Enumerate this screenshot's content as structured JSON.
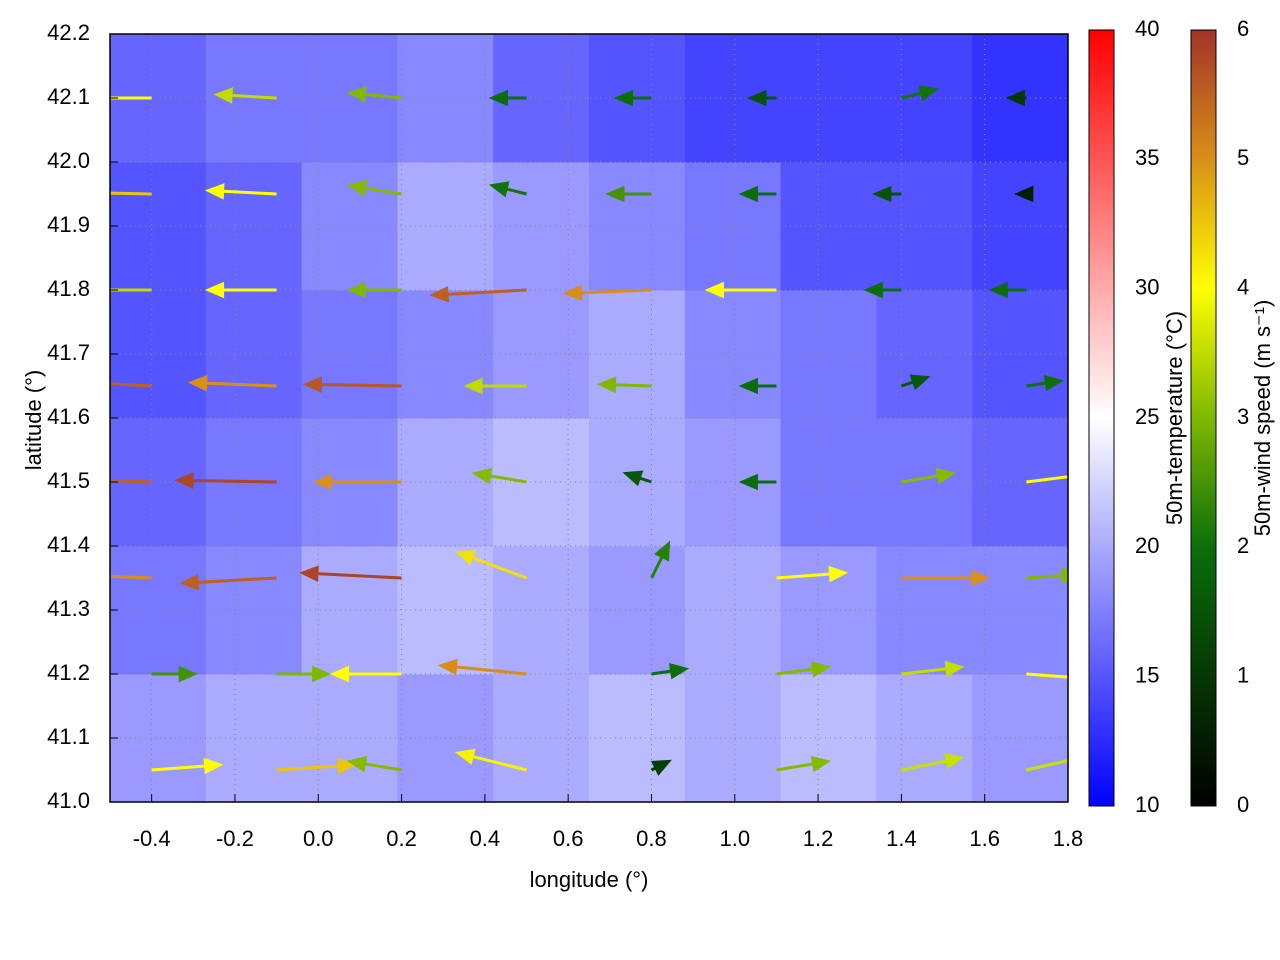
{
  "chart_data": {
    "type": "vector_field",
    "xlabel": "longitude (°)",
    "ylabel": "latitude (°)",
    "xlim": [
      -0.5,
      1.8
    ],
    "ylim": [
      41.0,
      42.2
    ],
    "xticks": [
      -0.4,
      -0.2,
      {
        "value": 0,
        "label": "0.0"
      },
      0.2,
      0.4,
      0.6,
      0.8,
      {
        "value": 1,
        "label": "1.0"
      },
      1.2,
      1.4,
      1.6,
      1.8
    ],
    "yticks": [
      {
        "value": 41,
        "label": "41.0"
      },
      41.1,
      41.2,
      41.3,
      41.4,
      41.5,
      41.6,
      41.7,
      41.8,
      41.9,
      {
        "value": 42,
        "label": "42.0"
      },
      42.1,
      42.2
    ],
    "grid": true,
    "temperature": {
      "lon": [
        -0.385,
        -0.155,
        0.075,
        0.305,
        0.535,
        0.765,
        0.995,
        1.225,
        1.455,
        1.685
      ],
      "lat": [
        41.1,
        41.3,
        41.5,
        41.7,
        41.9,
        42.1
      ],
      "values": [
        [
          19,
          20,
          20,
          19,
          20,
          21,
          20,
          21,
          20,
          19
        ],
        [
          17,
          18,
          20,
          21,
          20,
          19,
          20,
          19,
          18,
          18
        ],
        [
          16,
          17,
          18,
          20,
          21,
          20,
          19,
          17,
          17,
          16
        ],
        [
          15,
          16,
          17,
          18,
          19,
          20,
          18,
          17,
          16,
          15
        ],
        [
          15,
          16,
          18,
          20,
          19,
          18,
          17,
          15,
          15,
          14
        ],
        [
          16,
          17,
          17,
          18,
          16,
          15,
          14,
          14,
          14,
          13
        ]
      ]
    },
    "vectors": {
      "lon": [
        -0.4,
        -0.1,
        0.2,
        0.5,
        0.8,
        1.1,
        1.4,
        1.7,
        -0.4,
        -0.1,
        0.2,
        0.5,
        0.8,
        1.1,
        1.4,
        1.7,
        -0.4,
        -0.1,
        0.2,
        0.5,
        0.8,
        1.1,
        1.4,
        1.7,
        -0.4,
        -0.1,
        0.2,
        0.5,
        0.8,
        1.1,
        1.4,
        1.7,
        -0.4,
        -0.1,
        0.2,
        0.5,
        0.8,
        1.1,
        1.4,
        1.7,
        -0.4,
        -0.1,
        0.2,
        0.5,
        0.8,
        1.1,
        1.4,
        1.7,
        -0.4,
        -0.1,
        0.2,
        0.5,
        0.8,
        1.1,
        1.4,
        1.7,
        -0.4,
        -0.1,
        0.2,
        0.5,
        0.8,
        1.1,
        1.4,
        1.7
      ],
      "lat": [
        41.05,
        41.05,
        41.05,
        41.05,
        41.05,
        41.05,
        41.05,
        41.05,
        41.2,
        41.2,
        41.2,
        41.2,
        41.2,
        41.2,
        41.2,
        41.2,
        41.35,
        41.35,
        41.35,
        41.35,
        41.35,
        41.35,
        41.35,
        41.35,
        41.5,
        41.5,
        41.5,
        41.5,
        41.5,
        41.5,
        41.5,
        41.5,
        41.65,
        41.65,
        41.65,
        41.65,
        41.65,
        41.65,
        41.65,
        41.65,
        41.8,
        41.8,
        41.8,
        41.8,
        41.8,
        41.8,
        41.8,
        41.8,
        41.95,
        41.95,
        41.95,
        41.95,
        41.95,
        41.95,
        41.95,
        41.95,
        42.1,
        42.1,
        42.1,
        42.1,
        42.1,
        42.1,
        42.1,
        42.1
      ],
      "u": [
        4,
        4.5,
        -3,
        -4,
        1,
        3,
        3.5,
        3.5,
        2.5,
        3,
        -4,
        -5,
        2,
        3,
        3.5,
        4,
        -5,
        -5.5,
        -5.8,
        -4,
        1,
        4,
        5,
        3,
        -5.5,
        -5.8,
        -5,
        -3,
        -1.5,
        -2,
        3,
        4,
        -5.5,
        -5,
        -5.6,
        -3.5,
        -3,
        -2,
        1.5,
        2,
        -3.5,
        -4,
        -3,
        -5.5,
        -5,
        -4,
        -2,
        -2,
        -4.5,
        -4,
        -3,
        -2,
        -2.5,
        -2,
        -1.5,
        -0.5,
        -4,
        -3.5,
        -3,
        -2,
        -2,
        -1.5,
        2,
        -1
      ],
      "v": [
        0.3,
        0.3,
        0.5,
        1,
        0.5,
        0.5,
        0.7,
        0.8,
        0,
        0,
        0,
        0.5,
        0.3,
        0.4,
        0.4,
        -0.3,
        0.2,
        -0.3,
        0.3,
        1.5,
        2,
        0.3,
        0,
        0.2,
        0.2,
        0.1,
        0,
        0.5,
        0.5,
        0,
        0.5,
        0.5,
        0.3,
        0.2,
        0.1,
        0,
        0.1,
        0,
        0.5,
        0.3,
        0,
        0,
        0,
        -0.3,
        -0.2,
        0,
        0,
        0,
        0.1,
        0.2,
        0.5,
        0.5,
        0,
        0,
        0,
        0,
        0,
        0.2,
        0.3,
        0,
        0,
        0,
        0.5,
        0
      ]
    },
    "colorbars": [
      {
        "label": "50m-temperature (°C)",
        "lim": [
          10,
          40
        ],
        "ticks": [
          10,
          15,
          20,
          25,
          30,
          35,
          40
        ]
      },
      {
        "label": "50m-wind speed (m s⁻¹)",
        "lim": [
          0,
          6
        ],
        "ticks": [
          0,
          1,
          2,
          3,
          4,
          5,
          6
        ]
      }
    ]
  }
}
